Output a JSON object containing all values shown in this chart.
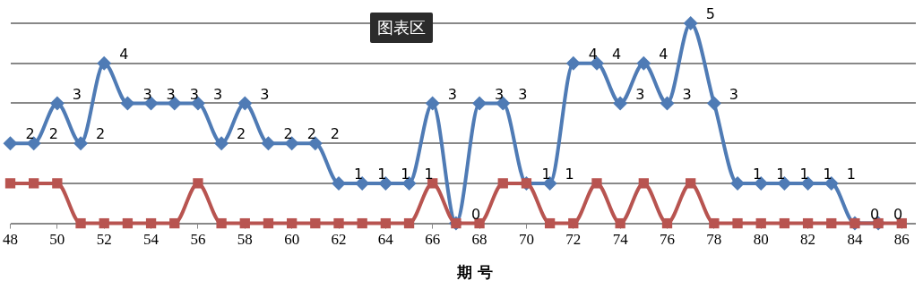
{
  "chart_data": {
    "type": "line",
    "xlabel": "期 号",
    "annotations": [
      "图表区"
    ],
    "xlim": [
      48,
      86.6
    ],
    "xticks": [
      48,
      50,
      52,
      54,
      56,
      58,
      60,
      62,
      64,
      66,
      68,
      70,
      72,
      74,
      76,
      78,
      80,
      82,
      84,
      86
    ],
    "ylim": [
      0,
      5
    ],
    "yticks": [
      {
        "value": 0,
        "label": null
      },
      {
        "value": 1,
        "label": null
      },
      {
        "value": 2,
        "label": null
      },
      {
        "value": 3,
        "label": null
      },
      {
        "value": 4,
        "label": null
      },
      {
        "value": 5,
        "label": null
      }
    ],
    "grid": "y",
    "tick_labels": "x",
    "legend": false,
    "series": [
      {
        "color": "#4f7bb5",
        "marker": "diamond",
        "x": [
          48,
          49,
          50,
          51,
          52,
          53,
          54,
          55,
          56,
          57,
          58,
          59,
          60,
          61,
          62,
          63,
          64,
          65,
          66,
          67,
          68,
          69,
          70,
          71,
          72,
          73,
          74,
          75,
          76,
          77,
          78,
          79,
          80,
          81,
          82,
          83,
          84,
          85
        ],
        "values": [
          2,
          2,
          3,
          2,
          4,
          3,
          3,
          3,
          3,
          2,
          3,
          2,
          2,
          2,
          1,
          1,
          1,
          1,
          3,
          0,
          3,
          3,
          1,
          1,
          4,
          4,
          3,
          4,
          3,
          5,
          3,
          1,
          1,
          1,
          1,
          1,
          0,
          0
        ],
        "value_labels": [
          "2",
          "2",
          "3",
          "2",
          "4",
          "3",
          "3",
          "3",
          "3",
          "2",
          "3",
          "2",
          "2",
          "2",
          "1",
          "1",
          "1",
          "1",
          "3",
          "0",
          "3",
          "3",
          "1",
          "1",
          "4",
          "4",
          "3",
          "4",
          "3",
          "5",
          "3",
          "1",
          "1",
          "1",
          "1",
          "1",
          "0",
          "0"
        ]
      },
      {
        "color": "#b85450",
        "marker": "square",
        "x": [
          48,
          49,
          50,
          51,
          52,
          53,
          54,
          55,
          56,
          57,
          58,
          59,
          60,
          61,
          62,
          63,
          64,
          65,
          66,
          67,
          68,
          69,
          70,
          71,
          72,
          73,
          74,
          75,
          76,
          77,
          78,
          79,
          80,
          81,
          82,
          83,
          84,
          85,
          86
        ],
        "values": [
          1,
          1,
          1,
          0,
          0,
          0,
          0,
          0,
          1,
          0,
          0,
          0,
          0,
          0,
          0,
          0,
          0,
          0,
          1,
          0,
          0,
          1,
          1,
          0,
          0,
          1,
          0,
          1,
          0,
          1,
          0,
          0,
          0,
          0,
          0,
          0,
          0,
          0,
          0
        ]
      }
    ]
  }
}
